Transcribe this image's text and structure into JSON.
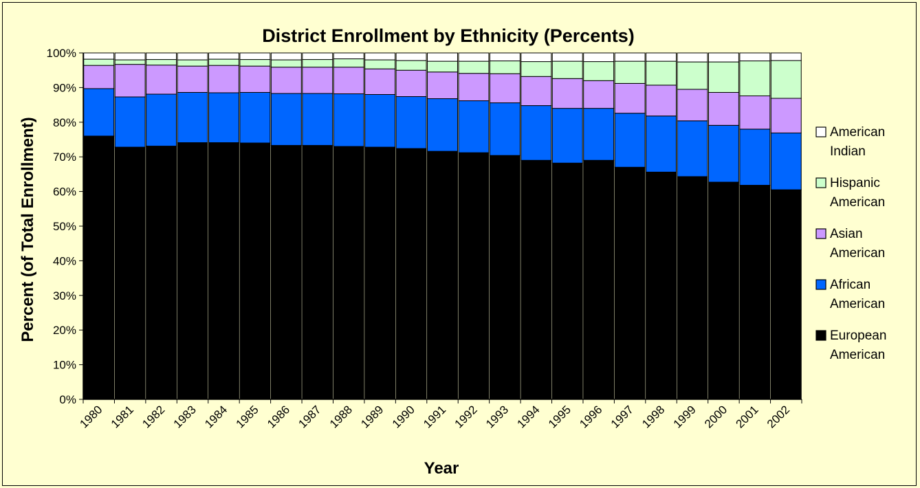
{
  "chart_data": {
    "type": "bar",
    "stacked": true,
    "title": "District Enrollment by Ethnicity (Percents)",
    "xlabel": "Year",
    "ylabel": "Percent (of Total Enrollment)",
    "ylim": [
      0,
      100
    ],
    "y_ticks": [
      "0%",
      "10%",
      "20%",
      "30%",
      "40%",
      "50%",
      "60%",
      "70%",
      "80%",
      "90%",
      "100%"
    ],
    "grid": false,
    "legend_position": "right",
    "categories": [
      "1980",
      "1981",
      "1982",
      "1983",
      "1984",
      "1985",
      "1986",
      "1987",
      "1988",
      "1989",
      "1990",
      "1991",
      "1992",
      "1993",
      "1994",
      "1995",
      "1996",
      "1997",
      "1998",
      "1999",
      "2000",
      "2001",
      "2002"
    ],
    "series": [
      {
        "name": "European American",
        "color": "#000000",
        "values": [
          76.0,
          72.8,
          73.1,
          74.1,
          74.1,
          74.0,
          73.3,
          73.3,
          73.0,
          72.8,
          72.4,
          71.6,
          71.2,
          70.4,
          69.0,
          68.2,
          69.0,
          67.0,
          65.6,
          64.3,
          62.7,
          61.8,
          60.5
        ]
      },
      {
        "name": "African American",
        "color": "#0066ff",
        "values": [
          13.7,
          14.5,
          15.0,
          14.5,
          14.4,
          14.6,
          15.0,
          15.0,
          15.2,
          15.2,
          15.0,
          15.2,
          15.0,
          15.2,
          15.8,
          15.8,
          15.0,
          15.6,
          16.2,
          16.1,
          16.4,
          16.2,
          16.4
        ]
      },
      {
        "name": "Asian American",
        "color": "#cc99ff",
        "values": [
          6.7,
          9.4,
          8.4,
          7.6,
          7.9,
          7.6,
          7.6,
          7.6,
          7.7,
          7.4,
          7.6,
          7.7,
          7.9,
          8.4,
          8.4,
          8.6,
          8.0,
          8.6,
          8.9,
          9.1,
          9.5,
          9.6,
          10.0
        ]
      },
      {
        "name": "Hispanic American",
        "color": "#ccffcc",
        "values": [
          1.8,
          1.3,
          1.6,
          1.8,
          1.8,
          1.9,
          2.1,
          2.2,
          2.4,
          2.6,
          2.8,
          3.1,
          3.5,
          3.7,
          4.3,
          5.0,
          5.5,
          6.4,
          6.9,
          7.9,
          8.8,
          10.1,
          10.9
        ]
      },
      {
        "name": "American Indian",
        "color": "#ffffff",
        "values": [
          1.8,
          2.0,
          1.9,
          2.0,
          1.8,
          1.9,
          2.0,
          1.9,
          1.7,
          2.0,
          2.2,
          2.4,
          2.4,
          2.3,
          2.5,
          2.4,
          2.5,
          2.4,
          2.4,
          2.6,
          2.6,
          2.3,
          2.2
        ]
      }
    ],
    "legend": [
      {
        "key": "american-indian",
        "line1": "American",
        "line2": "Indian",
        "color": "#ffffff"
      },
      {
        "key": "hispanic-american",
        "line1": "Hispanic",
        "line2": "American",
        "color": "#ccffcc"
      },
      {
        "key": "asian-american",
        "line1": "Asian",
        "line2": "American",
        "color": "#cc99ff"
      },
      {
        "key": "african-american",
        "line1": "African",
        "line2": "American",
        "color": "#0066ff"
      },
      {
        "key": "european-american",
        "line1": "European",
        "line2": "American",
        "color": "#000000"
      }
    ]
  }
}
